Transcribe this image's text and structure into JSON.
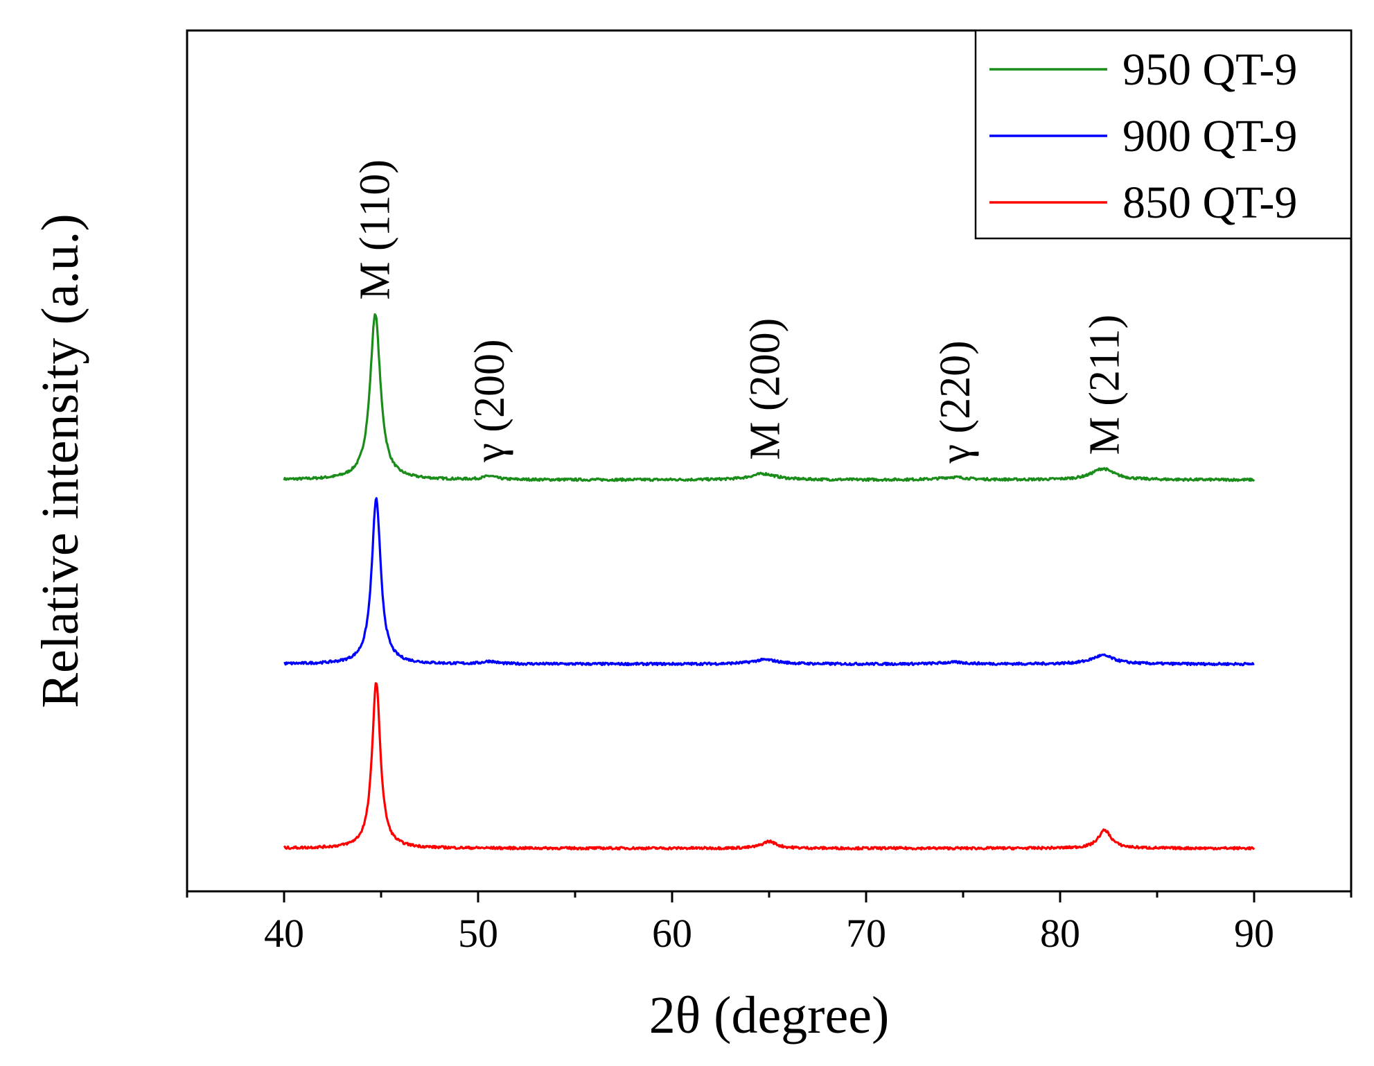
{
  "chart_data": {
    "type": "line",
    "title": "",
    "xlabel": "2θ (degree)",
    "ylabel": "Relative intensity (a.u.)",
    "xlim": [
      35,
      95
    ],
    "ylim": [
      0,
      1
    ],
    "x_ticks": [
      40,
      50,
      60,
      70,
      80,
      90
    ],
    "x_tick_labels": [
      "40",
      "50",
      "60",
      "70",
      "80",
      "90"
    ],
    "x_minor_ticks": [
      35,
      45,
      55,
      65,
      75,
      85,
      95
    ],
    "grid": false,
    "legend_position": "top-right",
    "series": [
      {
        "name": "950 QT-9",
        "color": "#1a8c1a",
        "offset": 0.478,
        "x_range": [
          40,
          90
        ],
        "peaks": [
          {
            "x": 44.7,
            "height": 0.193,
            "width": 0.32
          },
          {
            "x": 50.6,
            "height": 0.004,
            "width": 0.4
          },
          {
            "x": 64.7,
            "height": 0.007,
            "width": 0.8
          },
          {
            "x": 74.5,
            "height": 0.003,
            "width": 0.8
          },
          {
            "x": 82.2,
            "height": 0.013,
            "width": 0.7
          }
        ]
      },
      {
        "name": "900 QT-9",
        "color": "#0000ff",
        "offset": 0.264,
        "x_range": [
          40,
          90
        ],
        "peaks": [
          {
            "x": 44.75,
            "height": 0.192,
            "width": 0.28
          },
          {
            "x": 50.6,
            "height": 0.003,
            "width": 0.4
          },
          {
            "x": 64.8,
            "height": 0.005,
            "width": 0.8
          },
          {
            "x": 74.5,
            "height": 0.002,
            "width": 0.8
          },
          {
            "x": 82.2,
            "height": 0.01,
            "width": 0.7
          }
        ]
      },
      {
        "name": "850 QT-9",
        "color": "#ff0000",
        "offset": 0.05,
        "x_range": [
          40,
          90
        ],
        "peaks": [
          {
            "x": 44.75,
            "height": 0.193,
            "width": 0.26
          },
          {
            "x": 65.0,
            "height": 0.008,
            "width": 0.45
          },
          {
            "x": 82.3,
            "height": 0.021,
            "width": 0.4
          }
        ]
      }
    ],
    "annotations": [
      {
        "text": "M (110)",
        "x": 44.7
      },
      {
        "text": "γ (200)",
        "x": 50.6
      },
      {
        "text": "M (200)",
        "x": 64.8
      },
      {
        "text": "γ (220)",
        "x": 74.6
      },
      {
        "text": "M (211)",
        "x": 82.3
      }
    ]
  }
}
